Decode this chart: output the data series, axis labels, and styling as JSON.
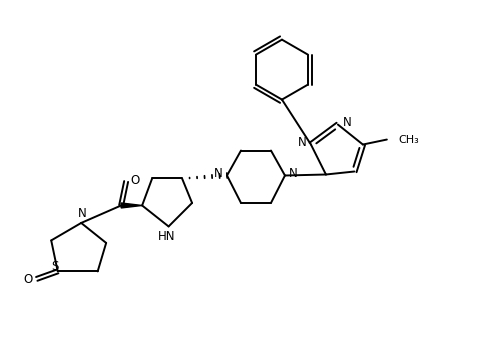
{
  "bg_color": "#ffffff",
  "line_color": "#000000",
  "line_width": 1.4,
  "font_size": 8.5,
  "fig_width": 5.02,
  "fig_height": 3.56,
  "dpi": 100,
  "xlim": [
    0,
    10
  ],
  "ylim": [
    0,
    7.1
  ]
}
